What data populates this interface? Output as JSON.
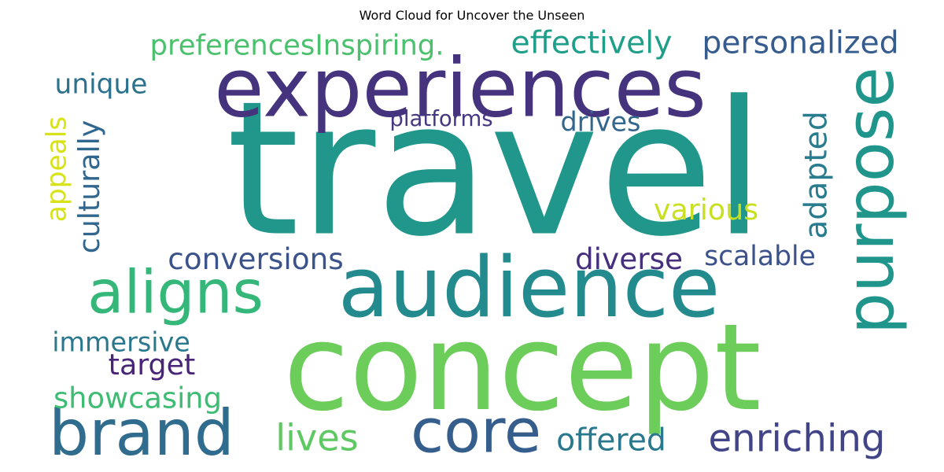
{
  "title": "Word Cloud for Uncover the Unseen",
  "words": [
    {
      "text": "travel",
      "color": "#21968b"
    },
    {
      "text": "experiences",
      "color": "#46337e"
    },
    {
      "text": "concept",
      "color": "#6ccd5a"
    },
    {
      "text": "audience",
      "color": "#238a8d"
    },
    {
      "text": "purpose",
      "color": "#20958b"
    },
    {
      "text": "aligns",
      "color": "#35b779"
    },
    {
      "text": "brand",
      "color": "#2f6c8e"
    },
    {
      "text": "core",
      "color": "#355e8d"
    },
    {
      "text": "enriching",
      "color": "#414487"
    },
    {
      "text": "lives",
      "color": "#5ec962"
    },
    {
      "text": "offered",
      "color": "#2a788e"
    },
    {
      "text": "showcasing",
      "color": "#3fbc73"
    },
    {
      "text": "target",
      "color": "#482576"
    },
    {
      "text": "immersive",
      "color": "#2a788e"
    },
    {
      "text": "conversions",
      "color": "#3b528b"
    },
    {
      "text": "diverse",
      "color": "#46307e"
    },
    {
      "text": "scalable",
      "color": "#3b528b"
    },
    {
      "text": "various",
      "color": "#c8e020"
    },
    {
      "text": "adapted",
      "color": "#287c8e"
    },
    {
      "text": "drives",
      "color": "#31678e"
    },
    {
      "text": "platforms",
      "color": "#453781"
    },
    {
      "text": "unique",
      "color": "#2c728e"
    },
    {
      "text": "appeals",
      "color": "#d8e219"
    },
    {
      "text": "culturally",
      "color": "#31678e"
    },
    {
      "text": "preferencesInspiring.",
      "color": "#4ac16d"
    },
    {
      "text": "effectively",
      "color": "#1f9e89"
    },
    {
      "text": "personalized",
      "color": "#365c8d"
    }
  ]
}
